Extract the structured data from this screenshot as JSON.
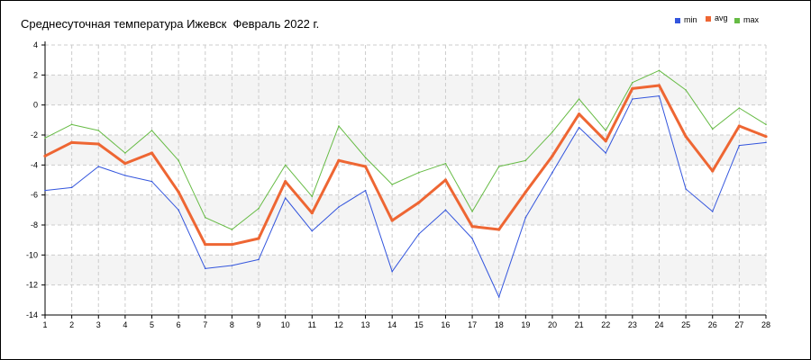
{
  "chart_data": {
    "type": "line",
    "title": "Среднесуточная температура Ижевск  Февраль 2022 г.",
    "xlabel": "",
    "ylabel": "",
    "x": [
      1,
      2,
      3,
      4,
      5,
      6,
      7,
      8,
      9,
      10,
      11,
      12,
      13,
      14,
      15,
      16,
      17,
      18,
      19,
      20,
      21,
      22,
      23,
      24,
      25,
      26,
      27,
      28
    ],
    "xlim": [
      1,
      28
    ],
    "ylim": [
      -14,
      4
    ],
    "yticks": [
      4,
      2,
      0,
      -2,
      -4,
      -6,
      -8,
      -10,
      -12,
      -14
    ],
    "grid": true,
    "legend_position": "top-right",
    "series": [
      {
        "name": "min",
        "color": "#3355dd",
        "values": [
          -5.7,
          -5.5,
          -4.1,
          -4.7,
          -5.1,
          -7.0,
          -10.9,
          -10.7,
          -10.3,
          -6.2,
          -8.4,
          -6.8,
          -5.7,
          -11.1,
          -8.6,
          -7.0,
          -8.9,
          -12.8,
          -7.5,
          -4.5,
          -1.5,
          -3.2,
          0.4,
          0.6,
          -5.6,
          -7.1,
          -2.7,
          -2.5
        ]
      },
      {
        "name": "avg",
        "color": "#ee6633",
        "values": [
          -3.4,
          -2.5,
          -2.6,
          -3.9,
          -3.2,
          -5.8,
          -9.3,
          -9.3,
          -8.9,
          -5.1,
          -7.2,
          -3.7,
          -4.1,
          -7.7,
          -6.5,
          -5.0,
          -8.1,
          -8.3,
          -5.8,
          -3.4,
          -0.6,
          -2.4,
          1.1,
          1.3,
          -2.1,
          -4.4,
          -1.4,
          -2.1
        ]
      },
      {
        "name": "max",
        "color": "#66bb44",
        "values": [
          -2.2,
          -1.3,
          -1.7,
          -3.2,
          -1.7,
          -3.7,
          -7.5,
          -8.3,
          -6.9,
          -4.0,
          -6.1,
          -1.4,
          -3.5,
          -5.3,
          -4.5,
          -3.9,
          -7.1,
          -4.1,
          -3.7,
          -1.8,
          0.4,
          -1.7,
          1.5,
          2.3,
          1.0,
          -1.6,
          -0.2,
          -1.3
        ]
      }
    ]
  }
}
